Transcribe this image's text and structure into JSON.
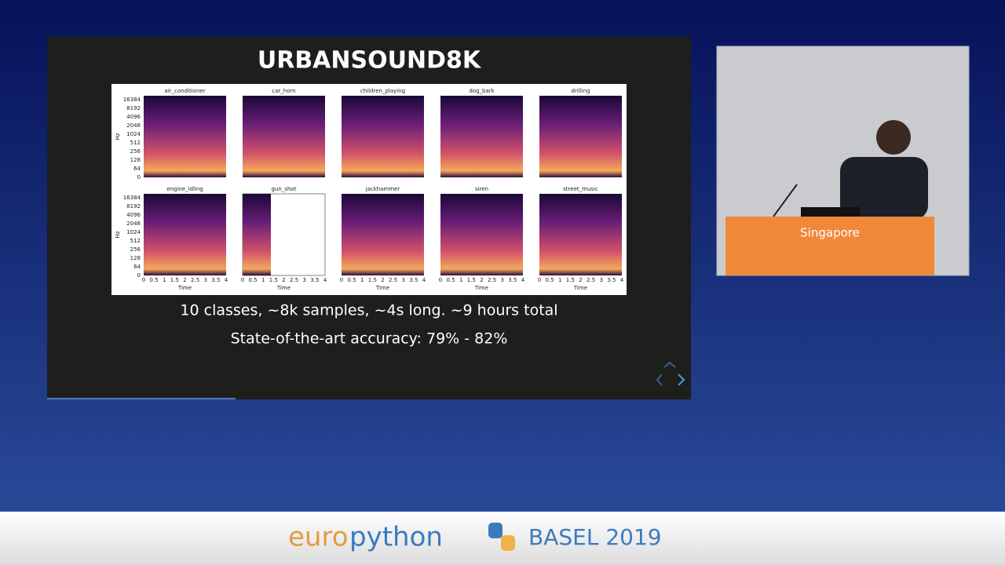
{
  "slide": {
    "title": "URBANSOUND8K",
    "figure": {
      "panels": [
        "air_conditioner",
        "car_horn",
        "children_playing",
        "dog_bark",
        "drilling",
        "engine_idling",
        "gun_shot",
        "jackhammer",
        "siren",
        "street_music"
      ],
      "y_axis_label": "Hz",
      "y_ticks": [
        "16384",
        "8192",
        "4096",
        "2048",
        "1024",
        "512",
        "256",
        "128",
        "64",
        "0"
      ],
      "x_axis_label": "Time",
      "x_ticks": [
        "0",
        "0.5",
        "1",
        "1.5",
        "2",
        "2.5",
        "3",
        "3.5",
        "4"
      ]
    },
    "lines": [
      "10 classes, ~8k samples, ~4s long. ~9 hours total",
      "State-of-the-art accuracy: 79% - 82%"
    ]
  },
  "podium": "Singapore",
  "footer": {
    "logo_left": "euro",
    "logo_right": "python",
    "event": "BASEL 2019"
  }
}
